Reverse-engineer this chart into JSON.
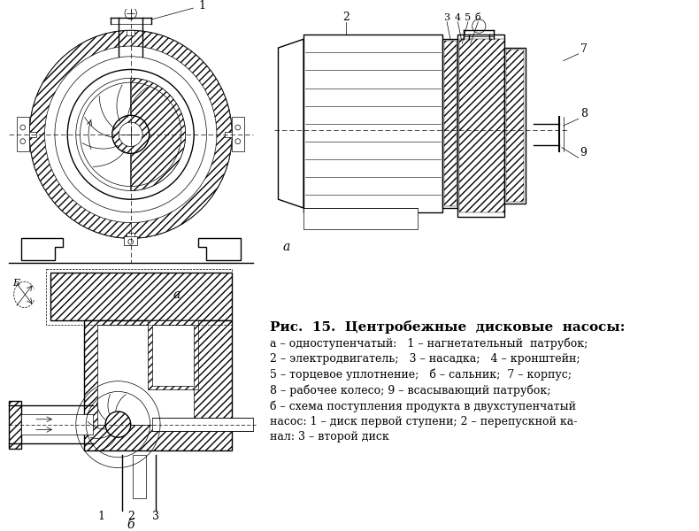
{
  "fig_width": 7.9,
  "fig_height": 6.0,
  "dpi": 100,
  "bg_color": "#ffffff",
  "text_color": "#000000",
  "title_text": "Рис.  15.  Центробежные  дисковые  насосы:",
  "caption_line1": "а – одноступенчатый:   1 – нагнетательный  патрубок;",
  "caption_line2": "2 – электродвигатель;   3 – насадка;   4 – кронштейн;",
  "caption_line3": "5 – торцевое уплотнение;   б́ – сальник;  7 – корпус;",
  "caption_line4": "8 – рабочее колесо; 9 – всасывающий патрубок;",
  "caption_line5": "б – схема поступления продукта в двухступенчатый",
  "caption_line6": "насос: 1 – диск первой ступени; 2 – перепускной ка-",
  "caption_line7": "нал: 3 – второй диск"
}
